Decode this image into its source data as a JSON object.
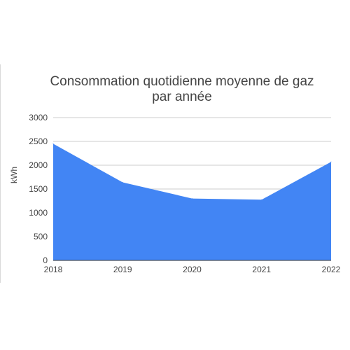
{
  "chart_data": {
    "type": "area",
    "title_line1": "Consommation quotidienne moyenne de gaz",
    "title_line2": "par année",
    "xlabel": "",
    "ylabel": "kWh",
    "categories": [
      "2018",
      "2019",
      "2020",
      "2021",
      "2022"
    ],
    "values": [
      2450,
      1640,
      1300,
      1275,
      2070
    ],
    "ylim": [
      0,
      3000
    ],
    "yticks": [
      0,
      500,
      1000,
      1500,
      2000,
      2500,
      3000
    ],
    "grid": true,
    "legend": "none",
    "area_color": "#4285f4",
    "grid_color": "#cccccc"
  }
}
